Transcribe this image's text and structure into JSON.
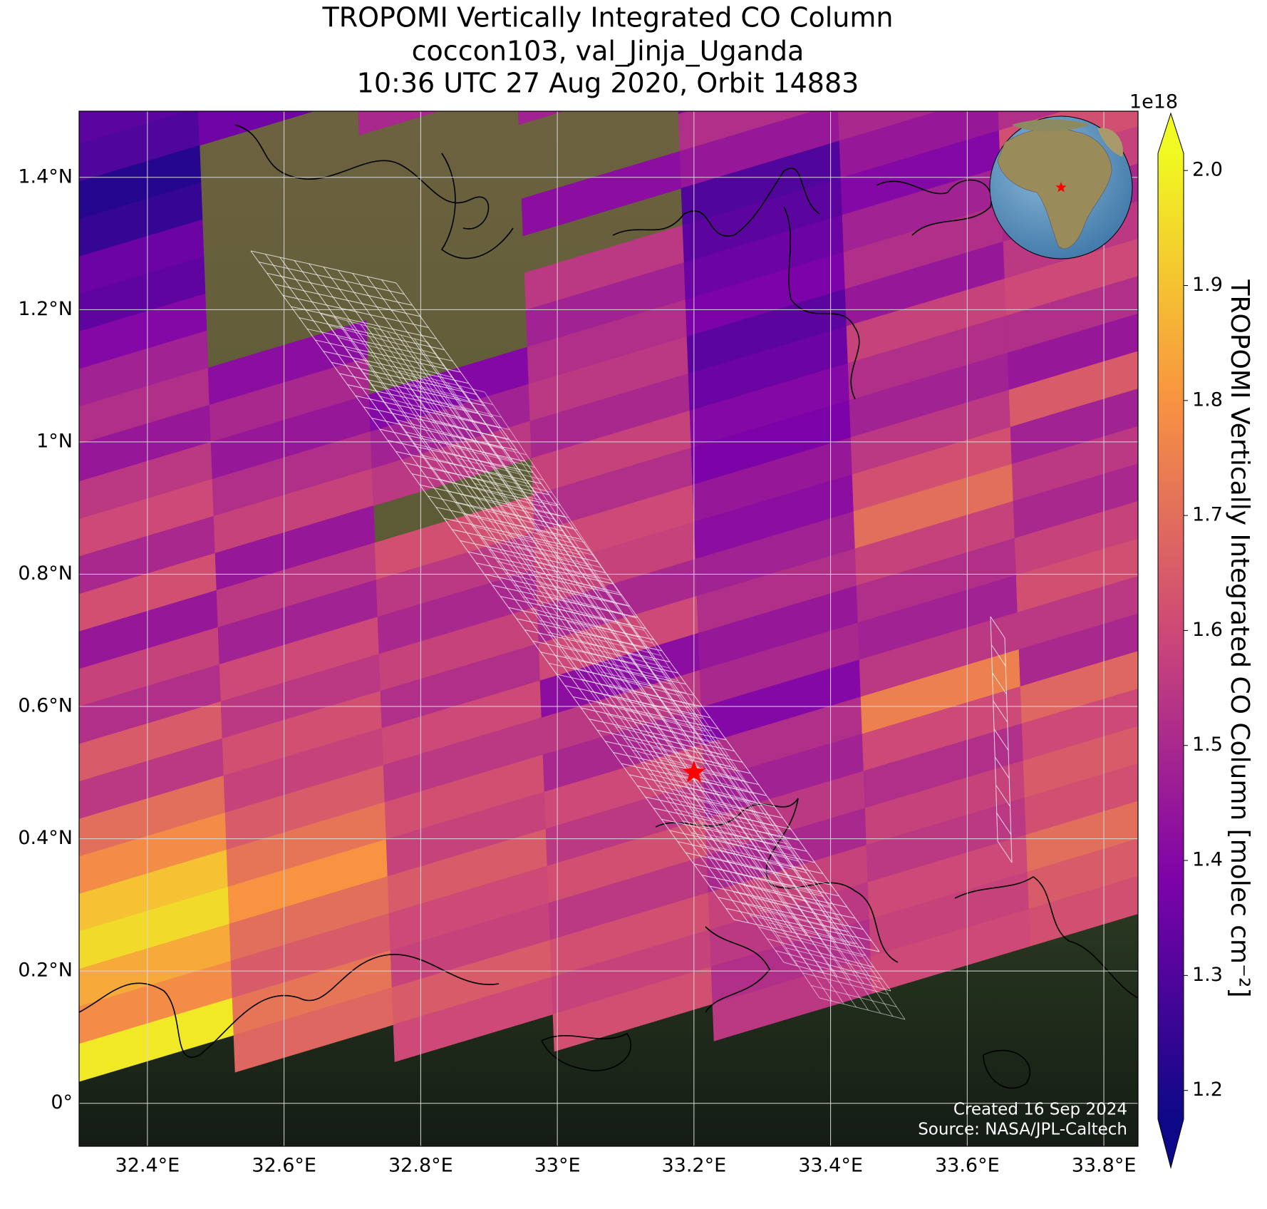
{
  "chart_data": {
    "type": "map",
    "title": "TROPOMI Vertically Integrated CO Column",
    "subtitle": [
      "coccon103, val_Jinja_Uganda",
      "10:36 UTC 27 Aug 2020, Orbit 14883"
    ],
    "annotations": [
      "Created 16 Sep 2024",
      "Source: NASA/JPL-Caltech"
    ],
    "xlim": [
      32.3,
      33.85
    ],
    "ylim": [
      -0.065,
      1.5
    ],
    "xticks": [
      {
        "value": 32.4,
        "label": "32.4°E"
      },
      {
        "value": 32.6,
        "label": "32.6°E"
      },
      {
        "value": 32.8,
        "label": "32.8°E"
      },
      {
        "value": 33,
        "label": "33°E"
      },
      {
        "value": 33.2,
        "label": "33.2°E"
      },
      {
        "value": 33.4,
        "label": "33.4°E"
      },
      {
        "value": 33.6,
        "label": "33.6°E"
      },
      {
        "value": 33.8,
        "label": "33.8°E"
      }
    ],
    "yticks": [
      {
        "value": 0,
        "label": "0°"
      },
      {
        "value": 0.2,
        "label": "0.2°N"
      },
      {
        "value": 0.4,
        "label": "0.4°N"
      },
      {
        "value": 0.6,
        "label": "0.6°N"
      },
      {
        "value": 0.8,
        "label": "0.8°N"
      },
      {
        "value": 1,
        "label": "1°N"
      },
      {
        "value": 1.2,
        "label": "1.2°N"
      },
      {
        "value": 1.4,
        "label": "1.4°N"
      }
    ],
    "grid": true,
    "colormap": "plasma",
    "site": {
      "lon": 33.2,
      "lat": 0.5,
      "color": "#ff0000"
    },
    "colorbar": {
      "label": "TROPOMI Vertically Integrated CO Column [molec cm⁻²]",
      "offset_label": "1e18",
      "lim": [
        1.175,
        2.015
      ],
      "extend": "both",
      "ticks": [
        1.2,
        1.3,
        1.4,
        1.5,
        1.6,
        1.7,
        1.8,
        1.9,
        {
          "value": 2,
          "label": "2.0"
        }
      ]
    },
    "values": [
      [
        null,
        null,
        null,
        null,
        null,
        null,
        null
      ],
      [
        1.38,
        null,
        null,
        null,
        null,
        null,
        null
      ],
      [
        1.32,
        null,
        null,
        null,
        null,
        null,
        null
      ],
      [
        1.3,
        1.36,
        null,
        null,
        null,
        null,
        null
      ],
      [
        1.22,
        null,
        1.5,
        null,
        null,
        null,
        null
      ],
      [
        1.25,
        null,
        null,
        1.48,
        null,
        null,
        null
      ],
      [
        1.35,
        null,
        null,
        null,
        1.4,
        null,
        null
      ],
      [
        1.33,
        null,
        null,
        null,
        1.52,
        null,
        null
      ],
      [
        1.4,
        null,
        null,
        1.42,
        1.45,
        1.5,
        null
      ],
      [
        1.48,
        null,
        null,
        null,
        1.3,
        1.45,
        1.52
      ],
      [
        1.52,
        1.42,
        null,
        1.55,
        1.32,
        1.4,
        1.62
      ],
      [
        1.45,
        1.5,
        null,
        1.48,
        1.35,
        1.48,
        1.58
      ],
      [
        1.55,
        1.45,
        1.4,
        1.52,
        1.38,
        1.52,
        1.5
      ],
      [
        1.6,
        1.52,
        1.48,
        1.55,
        1.32,
        1.45,
        1.55
      ],
      [
        1.5,
        1.58,
        1.55,
        1.5,
        1.35,
        1.58,
        1.6
      ],
      [
        1.62,
        1.45,
        null,
        1.58,
        1.4,
        1.52,
        1.52
      ],
      [
        1.45,
        1.55,
        1.62,
        1.52,
        1.38,
        1.48,
        1.45
      ],
      [
        1.58,
        1.48,
        1.55,
        1.6,
        1.45,
        1.55,
        1.65
      ],
      [
        1.52,
        1.6,
        1.5,
        1.58,
        1.42,
        1.62,
        1.48
      ],
      [
        1.65,
        1.55,
        1.58,
        1.5,
        1.48,
        1.7,
        1.55
      ],
      [
        1.55,
        1.62,
        1.52,
        1.6,
        1.52,
        1.58,
        1.5
      ],
      [
        1.7,
        1.58,
        1.6,
        1.42,
        1.45,
        1.52,
        1.58
      ],
      [
        1.78,
        1.65,
        1.55,
        1.55,
        1.5,
        1.48,
        1.62
      ],
      [
        1.9,
        1.72,
        1.62,
        1.5,
        1.4,
        1.55,
        1.55
      ],
      [
        1.95,
        1.8,
        1.58,
        1.6,
        1.52,
        1.75,
        1.5
      ],
      [
        1.85,
        1.7,
        1.65,
        1.55,
        1.48,
        1.6,
        1.68
      ],
      [
        1.78,
        1.65,
        1.6,
        1.62,
        1.55,
        1.52,
        1.6
      ],
      [
        1.98,
        1.72,
        1.58,
        1.55,
        1.5,
        1.58,
        1.65
      ],
      [
        null,
        1.68,
        1.65,
        1.62,
        1.58,
        1.55,
        1.62
      ],
      [
        null,
        null,
        1.6,
        1.58,
        1.55,
        1.6,
        1.7
      ],
      [
        null,
        null,
        null,
        1.62,
        1.52,
        1.58,
        1.65
      ],
      [
        null,
        null,
        null,
        null,
        1.55,
        1.6,
        1.62
      ]
    ]
  }
}
